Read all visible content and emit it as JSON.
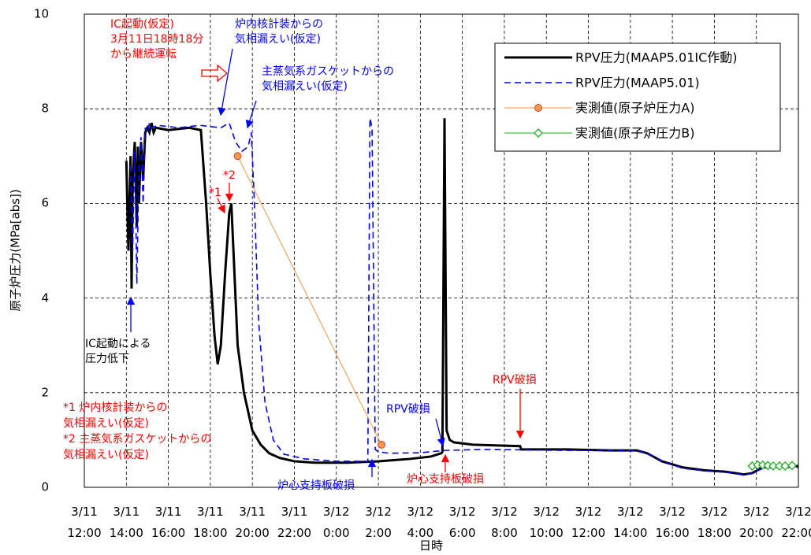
{
  "chart_data": {
    "type": "line",
    "x_label": "日時",
    "y_label": "原子炉圧力(MPa[abs])",
    "xlim": [
      12,
      46
    ],
    "xticks": [
      {
        "value": 12,
        "label": "3/11\n12:00"
      },
      {
        "value": 14,
        "label": "3/11\n14:00"
      },
      {
        "value": 16,
        "label": "3/11\n16:00"
      },
      {
        "value": 18,
        "label": "3/11\n18:00"
      },
      {
        "value": 20,
        "label": "3/11\n20:00"
      },
      {
        "value": 22,
        "label": "3/11\n22:00"
      },
      {
        "value": 24,
        "label": "3/12\n0:00"
      },
      {
        "value": 26,
        "label": "3/12\n2:00"
      },
      {
        "value": 28,
        "label": "3/12\n4:00"
      },
      {
        "value": 30,
        "label": "3/12\n6:00"
      },
      {
        "value": 32,
        "label": "3/12\n8:00"
      },
      {
        "value": 34,
        "label": "3/12\n10:00"
      },
      {
        "value": 36,
        "label": "3/12\n12:00"
      },
      {
        "value": 38,
        "label": "3/12\n14:00"
      },
      {
        "value": 40,
        "label": "3/12\n16:00"
      },
      {
        "value": 42,
        "label": "3/12\n18:00"
      },
      {
        "value": 44,
        "label": "3/12\n20:00"
      },
      {
        "value": 46,
        "label": "3/12\n22:00"
      }
    ],
    "ylim": [
      0,
      10
    ],
    "yticks": [
      0,
      2,
      4,
      6,
      8,
      10
    ],
    "grid": true,
    "legend": "upper right",
    "series": [
      {
        "name": "RPV圧力(MAAP5.01IC作動)",
        "color": "#000000",
        "dash": "solid",
        "marker": "none",
        "x": [
          14.0,
          14.1,
          14.2,
          14.25,
          14.3,
          14.4,
          14.5,
          14.55,
          14.6,
          14.7,
          14.8,
          14.9,
          15.0,
          15.1,
          15.2,
          15.3,
          15.4,
          16,
          17,
          17.55,
          17.8,
          18.0,
          18.2,
          18.35,
          18.5,
          18.7,
          18.9,
          19.0,
          19.1,
          19.3,
          19.6,
          20.0,
          20.4,
          20.8,
          21.3,
          22.0,
          23,
          24.5,
          26,
          27.5,
          28.5,
          29.0,
          29.05,
          29.15,
          29.25,
          29.4,
          29.6,
          30.5,
          32.0,
          32.75,
          32.8,
          33.5,
          35,
          37,
          38.3,
          38.8,
          39.5,
          40.5,
          41.5,
          42.5,
          43.0,
          43.4,
          43.8,
          44.3,
          45,
          46
        ],
        "values": [
          6.9,
          5.0,
          7.0,
          4.2,
          6.5,
          7.3,
          5.5,
          7.2,
          6.0,
          7.3,
          6.5,
          7.5,
          7.6,
          7.5,
          7.7,
          7.5,
          7.6,
          7.55,
          7.6,
          7.55,
          6.0,
          4.5,
          3.2,
          2.6,
          3.0,
          4.5,
          5.8,
          6.0,
          5.0,
          3.0,
          2.0,
          1.2,
          0.9,
          0.72,
          0.62,
          0.55,
          0.52,
          0.52,
          0.55,
          0.6,
          0.65,
          0.72,
          0.75,
          7.8,
          1.2,
          1.0,
          0.95,
          0.9,
          0.88,
          0.87,
          0.8,
          0.8,
          0.8,
          0.78,
          0.78,
          0.72,
          0.55,
          0.42,
          0.36,
          0.33,
          0.3,
          0.27,
          0.3,
          0.42,
          0.45,
          0.45
        ]
      },
      {
        "name": "RPV圧力(MAAP5.01)",
        "color": "#0000ff",
        "dash": "dashed",
        "marker": "none",
        "x": [
          14.2,
          14.3,
          14.4,
          14.5,
          14.6,
          14.7,
          14.8,
          14.9,
          15.0,
          15.1,
          15.2,
          15.5,
          16.5,
          17.5,
          18.5,
          18.9,
          19.2,
          19.5,
          19.8,
          19.95,
          20.1,
          20.3,
          20.6,
          21.0,
          21.5,
          22.5,
          24,
          25.5,
          25.6,
          25.7,
          25.85,
          26.0,
          26.5,
          28,
          29.2,
          31,
          35,
          37,
          38.3,
          38.8,
          39.5,
          40.5,
          41.5,
          42.5,
          43.0,
          43.4,
          43.8,
          44.3,
          45,
          46
        ],
        "values": [
          6.8,
          5.0,
          7.1,
          4.3,
          6.8,
          7.4,
          6.0,
          7.6,
          7.5,
          7.7,
          7.6,
          7.65,
          7.6,
          7.65,
          7.6,
          7.7,
          7.3,
          7.1,
          7.2,
          7.5,
          6.0,
          3.5,
          1.8,
          1.0,
          0.7,
          0.6,
          0.55,
          0.55,
          7.8,
          7.6,
          0.8,
          0.75,
          0.72,
          0.73,
          0.78,
          0.8,
          0.78,
          0.78,
          0.78,
          0.72,
          0.55,
          0.4,
          0.35,
          0.32,
          0.3,
          0.26,
          0.3,
          0.4,
          0.42,
          0.42
        ]
      },
      {
        "name": "実測値(原子炉圧力A)",
        "color": "#f79646",
        "dash": "solid",
        "marker": "circle",
        "x": [
          19.3,
          26.15
        ],
        "values": [
          7.0,
          0.9
        ]
      },
      {
        "name": "実測値(原子炉圧力B)",
        "color": "#22aa22",
        "dash": "solid",
        "marker": "diamond",
        "x": [
          43.8,
          44.06,
          44.3,
          44.55,
          44.8,
          45.1,
          45.37,
          45.7
        ],
        "values": [
          0.45,
          0.47,
          0.47,
          0.46,
          0.45,
          0.45,
          0.45,
          0.46
        ]
      }
    ],
    "annotations": [
      {
        "text": "IC起動(仮定)\n3月11日18時18分\nから継続運転",
        "color": "#ff0000"
      },
      {
        "text": "炉内核計装からの\n気相漏えい(仮定)",
        "color": "#0000ff"
      },
      {
        "text": "主蒸気系ガスケットからの\n気相漏えい(仮定)",
        "color": "#0000ff"
      },
      {
        "text": "*1",
        "color": "#ff0000"
      },
      {
        "text": "*2",
        "color": "#ff0000"
      },
      {
        "text": "IC起動による\n圧力低下",
        "color": "#000000"
      },
      {
        "text": "*1 炉内核計装からの\n気相漏えい(仮定)\n*2 主蒸気系ガスケットからの\n気相漏えい(仮定)",
        "color": "#ff0000"
      },
      {
        "text": "RPV破損",
        "color": "#0000ff"
      },
      {
        "text": "炉心支持板破損",
        "color": "#0000ff"
      },
      {
        "text": "RPV破損",
        "color": "#ff0000"
      },
      {
        "text": "炉心支持板破損",
        "color": "#ff0000"
      }
    ]
  }
}
